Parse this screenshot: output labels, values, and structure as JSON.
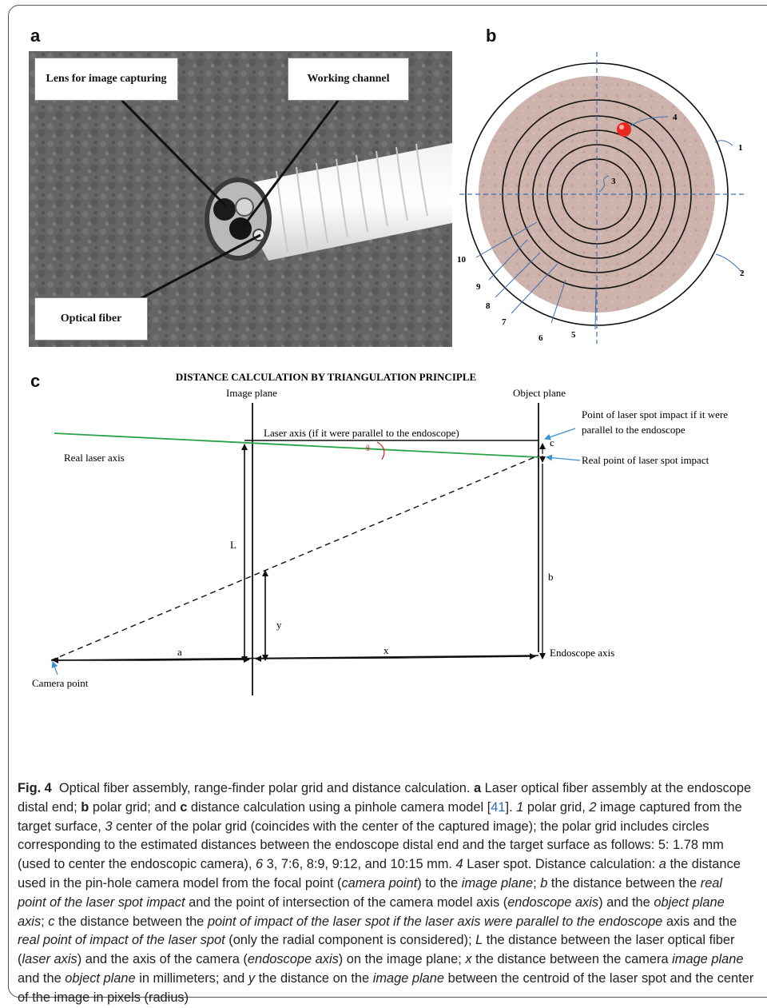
{
  "panels": {
    "a": "a",
    "b": "b",
    "c": "c"
  },
  "panel_a": {
    "callouts": {
      "lens": "Lens for image capturing",
      "working": "Working channel",
      "fiber": "Optical fiber"
    }
  },
  "panel_b": {
    "labels": {
      "l1": "1",
      "l2": "2",
      "l3": "3",
      "l4": "4",
      "l5": "5",
      "l6": "6",
      "l7": "7",
      "l8": "8",
      "l9": "9",
      "l10": "10"
    },
    "colors": {
      "target": "#cdb3ac",
      "laser_spot": "#e8291f",
      "axis": "#3a6fb0"
    }
  },
  "panel_c": {
    "title": "DISTANCE CALCULATION BY TRIANGULATION PRINCIPLE",
    "image_plane": "Image plane",
    "object_plane": "Object plane",
    "laser_axis_parallel": "Laser axis (if it were parallel to the endoscope)",
    "real_laser_axis": "Real laser axis",
    "theta": "θ",
    "impact_parallel_1": "Point of laser spot impact if it were",
    "impact_parallel_2": "parallel to the endoscope",
    "real_impact": "Real point of laser spot impact",
    "c": "c",
    "L": "L",
    "b": "b",
    "y": "y",
    "a": "a",
    "x": "x",
    "endoscope_axis": "Endoscope axis",
    "camera_point": "Camera point",
    "colors": {
      "real_laser": "#2aa24a",
      "theta": "#d22222",
      "pointer": "#3a8fd0"
    }
  },
  "caption": {
    "fig": "Fig. 4",
    "title": "Optical fiber assembly, range-finder polar grid and distance calculation.",
    "a": "a",
    "t1": "Laser optical fiber assembly at the endoscope distal end;",
    "b": "b",
    "t2": "polar grid; and",
    "c": "c",
    "t3": "distance calculation using a pinhole camera model [",
    "ref": "41",
    "t4": "].",
    "n1": "1",
    "t5": "polar grid,",
    "n2": "2",
    "t6": "image captured from the target surface,",
    "n3": "3",
    "t7": "center of the polar grid (coincides with the center of the captured image); the polar grid includes circles corresponding to the estimated distances between the endoscope distal end and the target surface as follows: 5: 1.78 mm (used to center the endoscopic camera),",
    "n6": "6",
    "t8": "3, 7:6, 8:9, 9:12, and 10:15 mm.",
    "n4": "4",
    "t9": "Laser spot. Distance calculation:",
    "ia": "a",
    "t10": "the distance used in the pin-hole camera model from the focal point (",
    "i_camera_point": "camera point",
    "t11": ") to the",
    "i_image_plane": "image plane",
    "t12": ";",
    "ib": "b",
    "t13": "the distance between the",
    "i_real_point": "real point of the laser spot impact",
    "t14": "and the point of intersection of the camera model axis (",
    "i_endoscope_axis": "endoscope axis",
    "t15": ") and the",
    "i_object_plane_axis": "object plane axis",
    "t16": ";",
    "ic": "c",
    "t17": "the distance between the",
    "i_point_parallel": "point of impact of the laser spot if the laser axis were parallel to the endoscope",
    "t18": "axis and the",
    "i_real_point2": "real point of impact of the laser spot",
    "t19": "(only the radial component is considered);",
    "iL": "L",
    "t20": "the distance between the laser optical fiber (",
    "i_laser_axis": "laser axis",
    "t21": ") and the axis of the camera (",
    "i_endoscope_axis2": "endoscope axis",
    "t22": ") on the image plane;",
    "ix": "x",
    "t23": "the distance between the camera",
    "i_image_plane2": "image plane",
    "t24": "and the",
    "i_object_plane": "object plane",
    "t25": "in millimeters; and",
    "iy": "y",
    "t26": "the distance on the",
    "i_image_plane3": "image plane",
    "t27": "between the centroid of the laser spot and the center of the image in pixels (radius)"
  }
}
